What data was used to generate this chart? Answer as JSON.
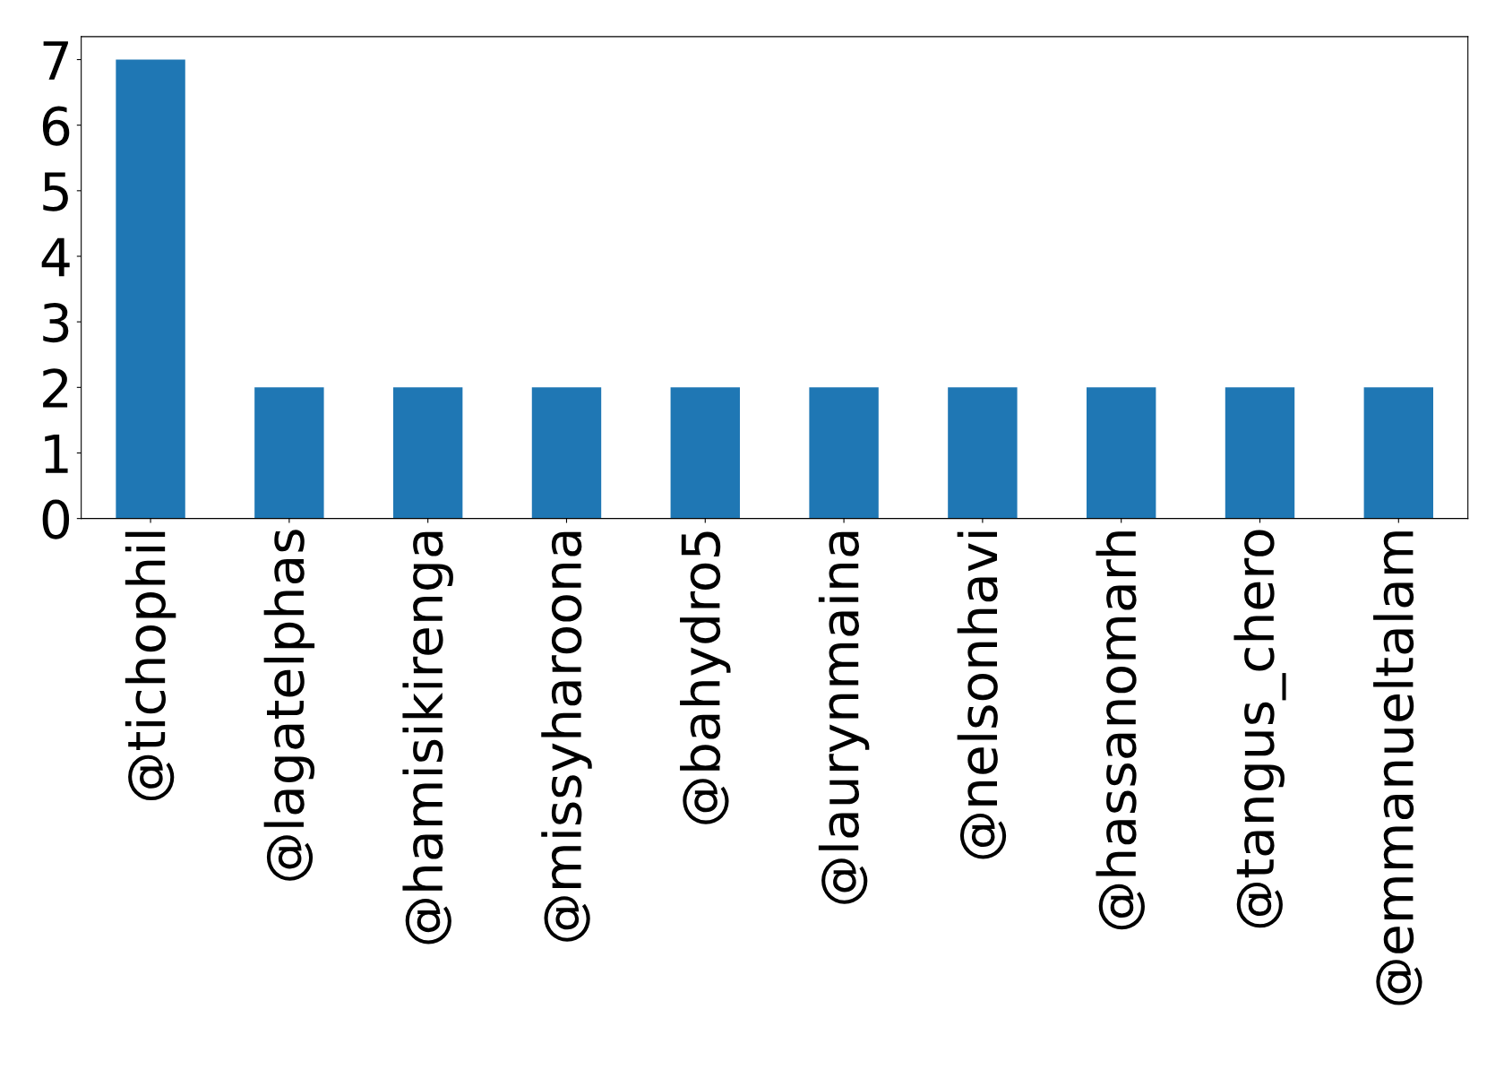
{
  "chart_data": {
    "type": "bar",
    "categories": [
      "@tichophil",
      "@lagatelphas",
      "@hamisikirenga",
      "@missyharoona",
      "@bahydro5",
      "@laurynmaina",
      "@nelsonhavi",
      "@hassanomarh",
      "@tangus_chero",
      "@emmanueltalam"
    ],
    "values": [
      7,
      2,
      2,
      2,
      2,
      2,
      2,
      2,
      2,
      2
    ],
    "color": "#1f77b4",
    "ylim": [
      0,
      7.35
    ],
    "yticks": [
      0,
      1,
      2,
      3,
      4,
      5,
      6,
      7
    ],
    "grid": false,
    "legend": false
  }
}
